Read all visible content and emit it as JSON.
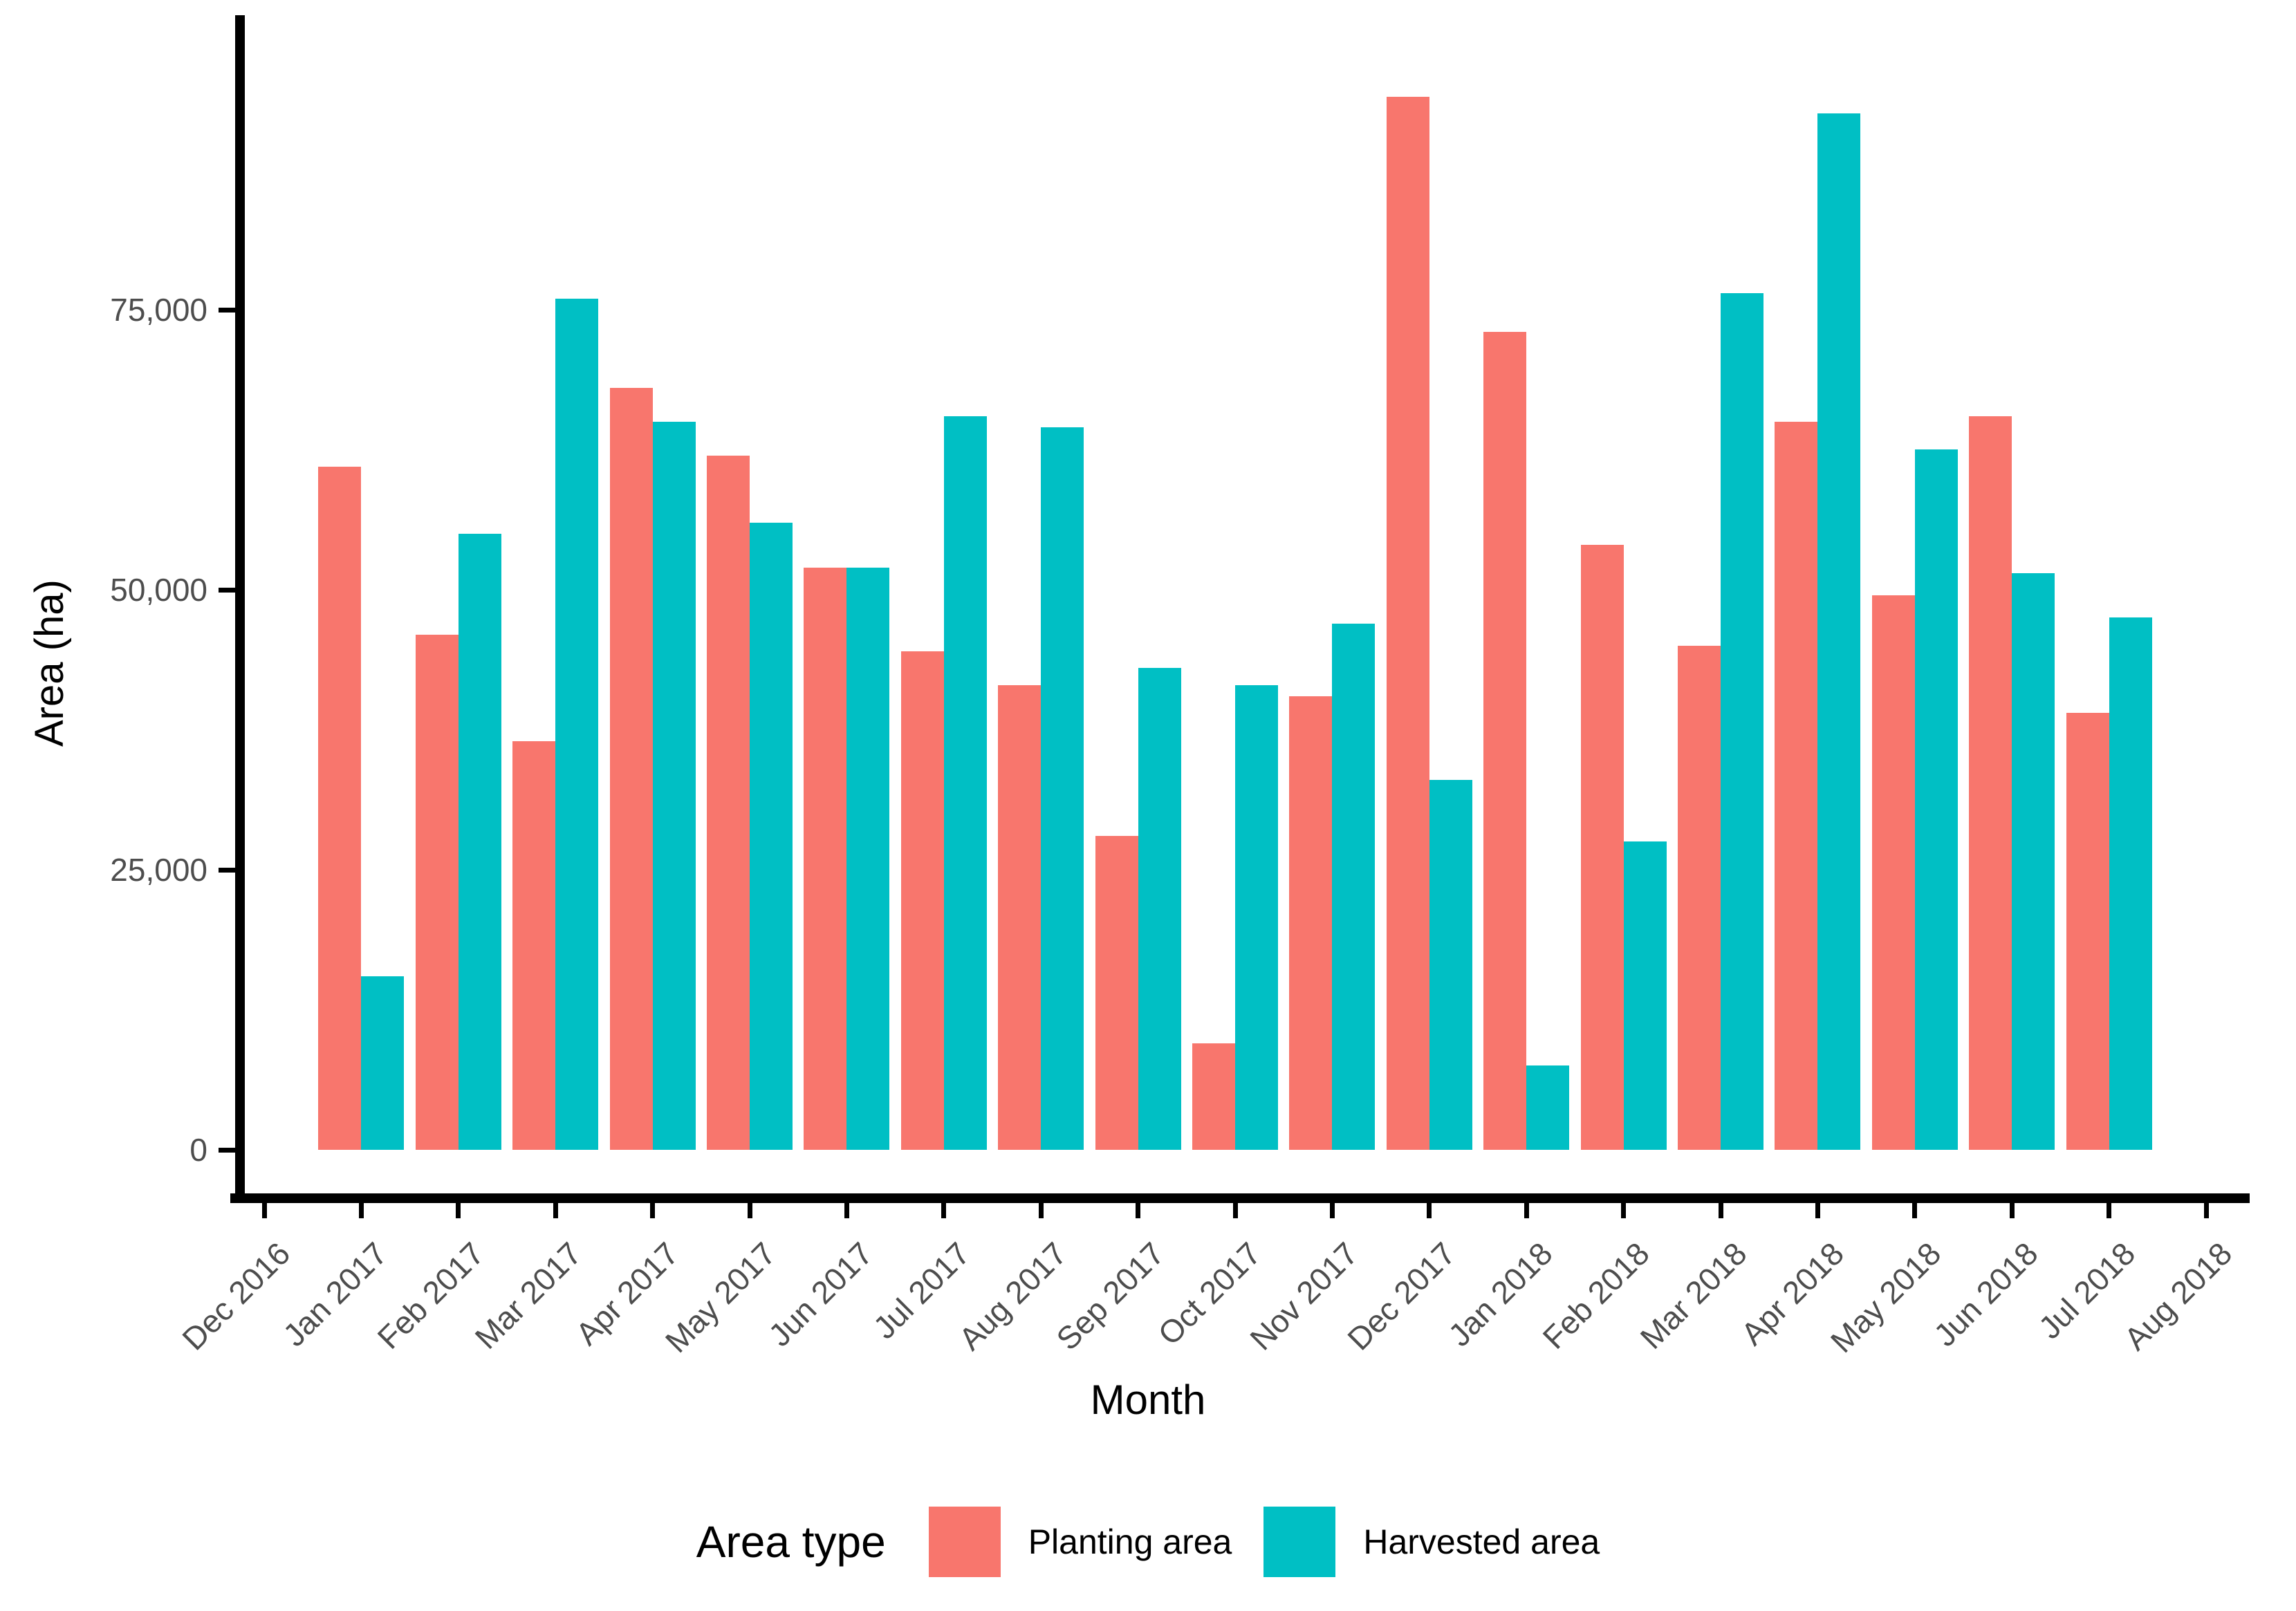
{
  "figure": {
    "y_axis": {
      "title": "Area (ha)",
      "tick_labels": [
        "0",
        "25,000",
        "50,000",
        "75,000"
      ],
      "tick_values": [
        0,
        25000,
        50000,
        75000
      ]
    },
    "x_axis": {
      "title": "Month"
    },
    "legend": {
      "title": "Area type",
      "items": [
        {
          "label": "Planting area",
          "color": "#F8766D"
        },
        {
          "label": "Harvested area",
          "color": "#00BFC4"
        }
      ]
    }
  },
  "chart_data": {
    "type": "bar",
    "title": "",
    "xlabel": "Month",
    "ylabel": "Area (ha)",
    "ylim": [
      0,
      100800
    ],
    "grid": false,
    "legend_position": "bottom",
    "categories": [
      "Dec 2016",
      "Jan 2017",
      "Feb 2017",
      "Mar 2017",
      "Apr 2017",
      "May 2017",
      "Jun 2017",
      "Jul 2017",
      "Aug 2017",
      "Sep 2017",
      "Oct 2017",
      "Nov 2017",
      "Dec 2017",
      "Jan 2018",
      "Feb 2018",
      "Mar 2018",
      "Apr 2018",
      "May 2018",
      "Jun 2018",
      "Jul 2018",
      "Aug 2018"
    ],
    "series": [
      {
        "name": "Planting area",
        "color": "#F8766D",
        "values": [
          null,
          61000,
          46000,
          36500,
          68000,
          62000,
          52000,
          44500,
          41500,
          28000,
          9500,
          40500,
          94000,
          73000,
          54000,
          45000,
          65000,
          49500,
          65500,
          39000,
          null
        ]
      },
      {
        "name": "Harvested area",
        "color": "#00BFC4",
        "values": [
          null,
          15500,
          55000,
          76000,
          65000,
          56000,
          52000,
          65500,
          64500,
          43000,
          41500,
          47000,
          33000,
          7500,
          27500,
          76500,
          92500,
          62500,
          51500,
          47500,
          null
        ]
      }
    ]
  }
}
